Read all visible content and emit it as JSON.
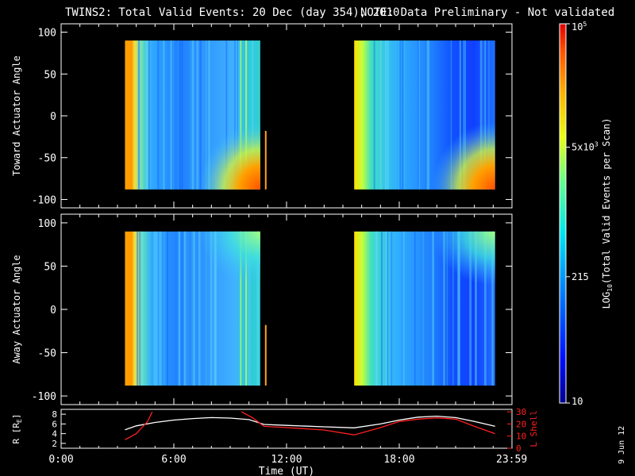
{
  "title": {
    "main": "TWINS2: Total Valid Events: 20 Dec (day 354), 2010",
    "note": "NOTE: Data Preliminary - Not validated",
    "note_color": "#ff2020"
  },
  "stamp": "9 Jun 12",
  "chart_data": [
    {
      "type": "heatmap",
      "ylabel": "Toward Actuator Angle",
      "xlim": [
        0,
        24
      ],
      "ylim": [
        -110,
        110
      ],
      "yticks": [
        100,
        50,
        0,
        -50,
        -100
      ],
      "data_blocks": [
        {
          "t_start": 3.4,
          "t_end": 10.6,
          "angle_min": -88,
          "angle_max": 90
        },
        {
          "t_start": 15.6,
          "t_end": 23.1,
          "angle_min": -88,
          "angle_max": 90
        }
      ],
      "spike": {
        "t": 10.85,
        "angle_min": -88,
        "angle_max": -18
      }
    },
    {
      "type": "heatmap",
      "ylabel": "Away Actuator Angle",
      "xlim": [
        0,
        24
      ],
      "ylim": [
        -110,
        110
      ],
      "yticks": [
        100,
        50,
        0,
        -50,
        -100
      ],
      "data_blocks": [
        {
          "t_start": 3.4,
          "t_end": 10.6,
          "angle_min": -88,
          "angle_max": 90
        },
        {
          "t_start": 15.6,
          "t_end": 23.1,
          "angle_min": -88,
          "angle_max": 90
        }
      ],
      "spike": {
        "t": 10.85,
        "angle_min": -88,
        "angle_max": -18
      }
    },
    {
      "type": "line",
      "xlabel": "Time (UT)",
      "xlim": [
        0,
        24
      ],
      "xticks": [
        0,
        6,
        12,
        18,
        23.983
      ],
      "xtick_labels": [
        "0:00",
        "6:00",
        "12:00",
        "18:00",
        "23:59"
      ],
      "ylabel_left": "R [R",
      "ylabel_left_sub": "E",
      "ylabel_left_end": "]",
      "ylim_left": [
        1,
        9
      ],
      "yticks_left": [
        8,
        6,
        4,
        2
      ],
      "ylabel_right": "L Shell",
      "ylim_right": [
        0,
        32
      ],
      "yticks_right": [
        30,
        20,
        10,
        0
      ],
      "right_color": "#ff2020",
      "series": [
        {
          "axis": "left",
          "color": "#ffffff",
          "x": [
            3.4,
            4,
            5,
            6,
            7,
            8,
            9,
            10,
            10.8,
            12,
            14,
            15.6,
            17,
            18,
            19,
            20,
            21,
            22,
            23,
            23.1
          ],
          "y": [
            4.8,
            5.6,
            6.3,
            6.8,
            7.1,
            7.3,
            7.2,
            6.9,
            5.9,
            5.7,
            5.4,
            5.2,
            6.0,
            6.8,
            7.4,
            7.6,
            7.3,
            6.5,
            5.6,
            5.5
          ]
        },
        {
          "axis": "right",
          "color": "#ff2020",
          "x": [
            3.4,
            4,
            4.6,
            4.85
          ],
          "y": [
            7,
            12,
            22,
            30
          ]
        },
        {
          "axis": "right",
          "color": "#ff2020",
          "x": [
            9.6,
            10.2,
            10.8,
            12,
            14,
            15.6,
            17,
            18,
            19,
            20,
            21,
            22,
            23.1
          ],
          "y": [
            30,
            25,
            18,
            17,
            15,
            11,
            17,
            22,
            24,
            25,
            24,
            18,
            12
          ]
        }
      ]
    }
  ],
  "colorbar": {
    "type": "colorbar",
    "label_log": "LOG",
    "label_sub": "10",
    "label_rest": "(Total Valid Events per Scan)",
    "scale": "log",
    "range": [
      10,
      100000
    ],
    "ticks": [
      {
        "value": 100000,
        "text": "10",
        "sup": "5"
      },
      {
        "value": 5000,
        "text": "5x10",
        "sup": "3"
      },
      {
        "value": 215,
        "text": "215",
        "sup": ""
      },
      {
        "value": 10,
        "text": "10",
        "sup": ""
      }
    ]
  }
}
